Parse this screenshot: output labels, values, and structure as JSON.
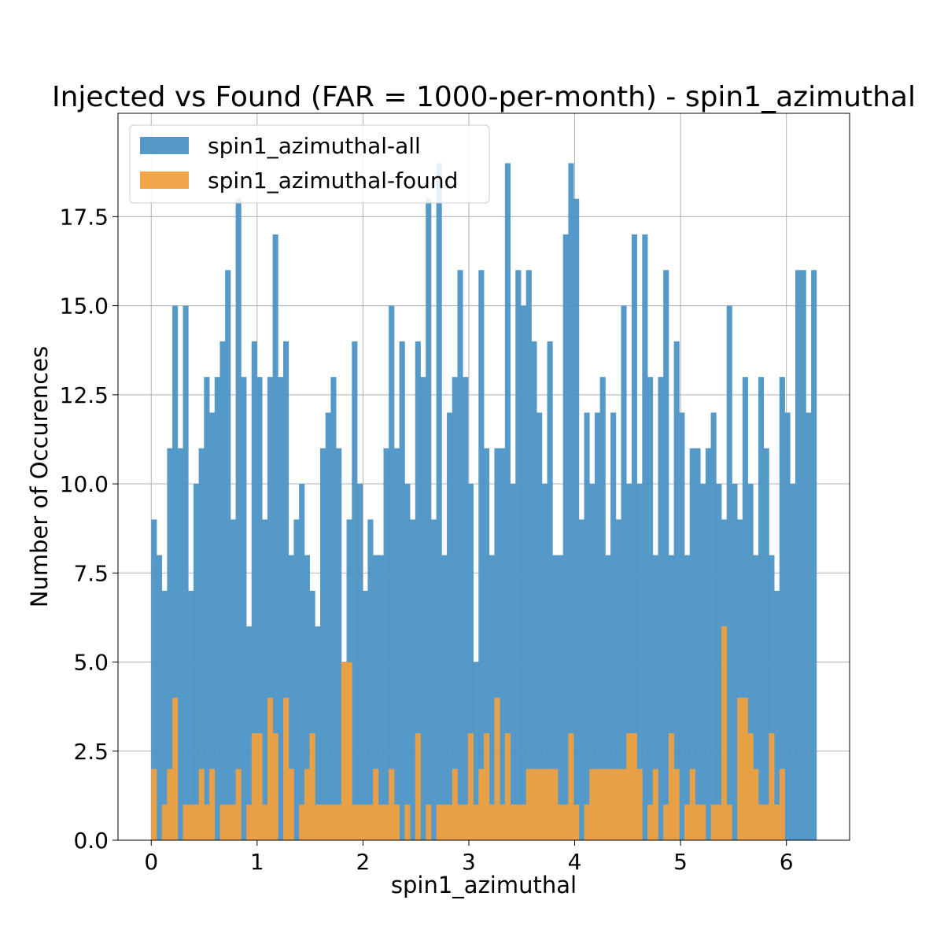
{
  "chart_data": {
    "type": "bar",
    "title": "Injected vs Found (FAR = 1000-per-month) - spin1_azimuthal",
    "xlabel": "spin1_azimuthal",
    "ylabel": "Number of Occurences",
    "xlim": [
      -0.314,
      6.597
    ],
    "ylim": [
      0,
      20.4
    ],
    "x_ticks": [
      0,
      1,
      2,
      3,
      4,
      5,
      6
    ],
    "x_tick_labels": [
      "0",
      "1",
      "2",
      "3",
      "4",
      "5",
      "6"
    ],
    "y_ticks": [
      0,
      2.5,
      5,
      7.5,
      10,
      12.5,
      15,
      17.5
    ],
    "y_tick_labels": [
      "0.0",
      "2.5",
      "5.0",
      "7.5",
      "10.0",
      "12.5",
      "15.0",
      "17.5"
    ],
    "grid": true,
    "legend_position": "top-left",
    "bins": {
      "start": 0,
      "end": 6.2832,
      "count": 126
    },
    "series": [
      {
        "name": "spin1_azimuthal-all",
        "color": "#4c93c5",
        "values": [
          9,
          8,
          7,
          11,
          15,
          11,
          15,
          7,
          10,
          11,
          13,
          12,
          13,
          14,
          16,
          9,
          18,
          13,
          6,
          14,
          13,
          9,
          13,
          17,
          13,
          14,
          8,
          9,
          10,
          8,
          7,
          6,
          11,
          12,
          13,
          11,
          5,
          9,
          14,
          10,
          7,
          9,
          8,
          8,
          11,
          15,
          11,
          14,
          10,
          9,
          14,
          13,
          18,
          9,
          19,
          8,
          12,
          13,
          16,
          13,
          10,
          5,
          16,
          11,
          8,
          11,
          11,
          19,
          10,
          16,
          15,
          16,
          14,
          12,
          10,
          14,
          8,
          8,
          17,
          19,
          18,
          9,
          12,
          10,
          12,
          13,
          8,
          12,
          9,
          15,
          10,
          17,
          10,
          17,
          13,
          8,
          13,
          16,
          8,
          14,
          12,
          8,
          11,
          11,
          10,
          11,
          12,
          10,
          9,
          15,
          10,
          9,
          13,
          10,
          8,
          13,
          11,
          8,
          7,
          13,
          12,
          10,
          16,
          16,
          12,
          16
        ]
      },
      {
        "name": "spin1_azimuthal-found",
        "color": "#f0a040",
        "values": [
          2,
          0,
          1,
          2,
          4,
          0,
          1,
          1,
          1,
          2,
          1,
          2,
          0,
          1,
          1,
          1,
          2,
          0,
          1,
          3,
          3,
          1,
          4,
          3,
          0,
          4,
          2,
          0,
          1,
          2,
          3,
          1,
          1,
          1,
          1,
          1,
          5,
          5,
          1,
          1,
          1,
          1,
          2,
          1,
          1,
          2,
          1,
          0,
          1,
          0,
          3,
          0,
          1,
          0,
          1,
          1,
          1,
          2,
          1,
          1,
          3,
          1,
          2,
          3,
          1,
          4,
          1,
          3,
          1,
          1,
          1,
          2,
          2,
          2,
          2,
          2,
          2,
          1,
          1,
          3,
          1,
          0,
          1,
          2,
          2,
          2,
          2,
          2,
          2,
          2,
          3,
          3,
          2,
          0,
          1,
          2,
          0,
          1,
          3,
          2,
          0,
          1,
          2,
          1,
          1,
          0,
          1,
          1,
          6,
          1,
          0,
          4,
          4,
          3,
          2,
          1,
          1,
          3,
          1,
          2,
          0,
          0,
          0,
          0,
          0,
          0
        ]
      }
    ]
  }
}
